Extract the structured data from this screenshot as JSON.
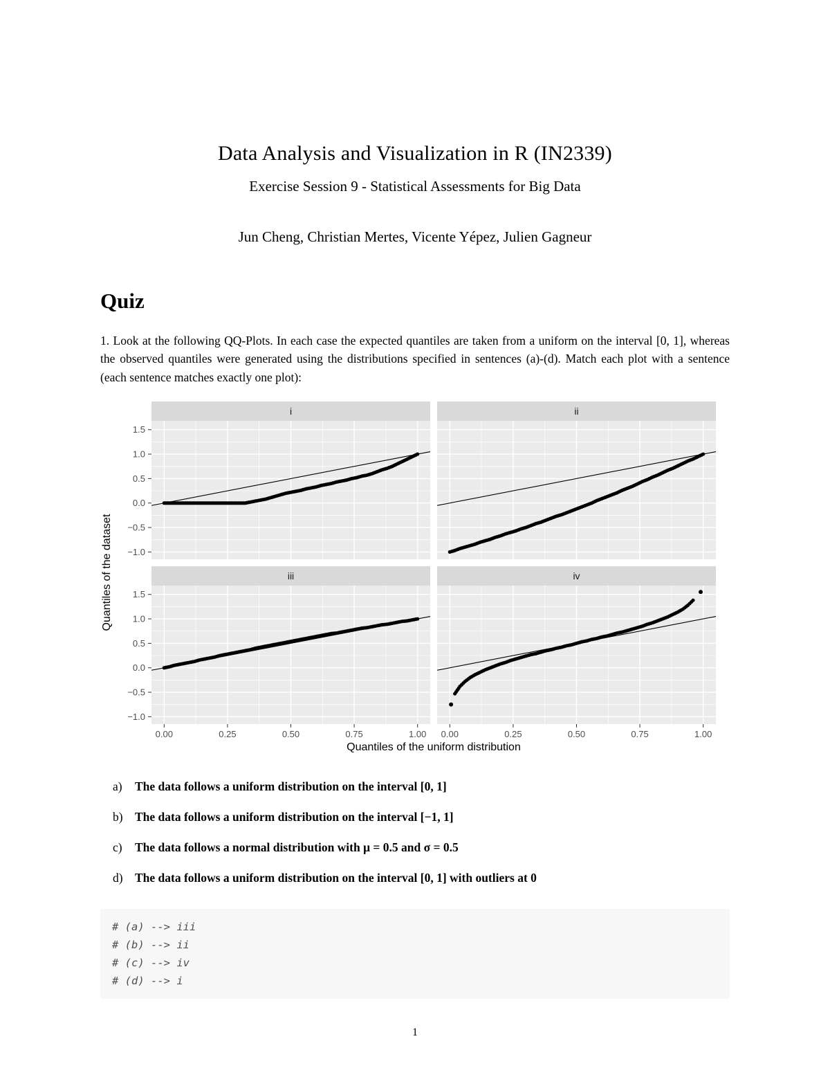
{
  "header": {
    "title": "Data Analysis and Visualization in R (IN2339)",
    "subtitle": "Exercise Session 9 - Statistical Assessments for Big Data",
    "authors": "Jun Cheng, Christian Mertes, Vicente Yépez, Julien Gagneur"
  },
  "quiz": {
    "heading": "Quiz",
    "question": "1.  Look at the following QQ-Plots.  In each case the expected quantiles are taken from a uniform on the interval [0, 1], whereas the observed quantiles were generated using the distributions specified in sentences (a)-(d).  Match each plot with a sentence (each sentence matches exactly one plot):",
    "options": [
      {
        "label": "a)",
        "text": "The data follows a uniform distribution on the interval [0, 1]"
      },
      {
        "label": "b)",
        "text": "The data follows a uniform distribution on the interval [−1, 1]"
      },
      {
        "label": "c)",
        "text": "The data follows a normal distribution with μ = 0.5 and σ = 0.5"
      },
      {
        "label": "d)",
        "text": "The data follows a uniform distribution on the interval [0, 1] with outliers at 0"
      }
    ],
    "answers_code": [
      "# (a) --> iii",
      "# (b) --> ii",
      "# (c) --> iv",
      "# (d) --> i"
    ]
  },
  "footer": {
    "page_number": "1"
  },
  "chart_data": {
    "type": "scatter",
    "title": "",
    "xlabel": "Quantiles of the uniform distribution",
    "ylabel": "Quantiles of the dataset",
    "legend": "none",
    "grid": "on",
    "xlim": [
      -0.05,
      1.05
    ],
    "ylim": [
      -1.15,
      1.68
    ],
    "x_ticks": {
      "values": [
        0,
        0.25,
        0.5,
        0.75,
        1
      ],
      "labels": [
        "0.00",
        "0.25",
        "0.50",
        "0.75",
        "1.00"
      ]
    },
    "y_ticks": {
      "values": [
        -1,
        -0.5,
        0,
        0.5,
        1,
        1.5
      ],
      "labels": [
        "−1.0",
        "−0.5",
        "0.0",
        "0.5",
        "1.0",
        "1.5"
      ]
    },
    "x_minor": [
      0.125,
      0.375,
      0.625,
      0.875
    ],
    "y_minor": [
      -0.75,
      -0.25,
      0.25,
      0.75,
      1.25
    ],
    "abline": {
      "intercept": 0,
      "slope": 1
    },
    "colors": {
      "panel_bg": "#ebebeb",
      "strip_bg": "#d9d9d9",
      "grid": "#ffffff",
      "point": "#000000",
      "tick_text": "#4d4d4d"
    },
    "facets": [
      {
        "label": "i",
        "points": [
          [
            0,
            0
          ],
          [
            0.02,
            0
          ],
          [
            0.04,
            0
          ],
          [
            0.06,
            0
          ],
          [
            0.08,
            0
          ],
          [
            0.1,
            0
          ],
          [
            0.12,
            0
          ],
          [
            0.14,
            0
          ],
          [
            0.16,
            0
          ],
          [
            0.18,
            0
          ],
          [
            0.2,
            0
          ],
          [
            0.22,
            0
          ],
          [
            0.24,
            0
          ],
          [
            0.26,
            0
          ],
          [
            0.28,
            0
          ],
          [
            0.3,
            0
          ],
          [
            0.32,
            0
          ],
          [
            0.34,
            0.02
          ],
          [
            0.36,
            0.04
          ],
          [
            0.38,
            0.06
          ],
          [
            0.4,
            0.08
          ],
          [
            0.42,
            0.11
          ],
          [
            0.44,
            0.14
          ],
          [
            0.46,
            0.17
          ],
          [
            0.48,
            0.2
          ],
          [
            0.5,
            0.22
          ],
          [
            0.52,
            0.24
          ],
          [
            0.54,
            0.26
          ],
          [
            0.56,
            0.29
          ],
          [
            0.58,
            0.31
          ],
          [
            0.6,
            0.33
          ],
          [
            0.62,
            0.36
          ],
          [
            0.64,
            0.38
          ],
          [
            0.66,
            0.4
          ],
          [
            0.68,
            0.43
          ],
          [
            0.7,
            0.45
          ],
          [
            0.72,
            0.47
          ],
          [
            0.74,
            0.5
          ],
          [
            0.76,
            0.52
          ],
          [
            0.78,
            0.55
          ],
          [
            0.8,
            0.57
          ],
          [
            0.82,
            0.6
          ],
          [
            0.84,
            0.64
          ],
          [
            0.86,
            0.68
          ],
          [
            0.88,
            0.71
          ],
          [
            0.9,
            0.75
          ],
          [
            0.92,
            0.8
          ],
          [
            0.94,
            0.85
          ],
          [
            0.96,
            0.9
          ],
          [
            0.98,
            0.95
          ],
          [
            1,
            1
          ]
        ],
        "outliers": []
      },
      {
        "label": "ii",
        "points": [
          [
            0,
            -1
          ],
          [
            0.02,
            -0.97
          ],
          [
            0.04,
            -0.93
          ],
          [
            0.06,
            -0.9
          ],
          [
            0.08,
            -0.87
          ],
          [
            0.1,
            -0.84
          ],
          [
            0.12,
            -0.8
          ],
          [
            0.14,
            -0.77
          ],
          [
            0.16,
            -0.74
          ],
          [
            0.18,
            -0.7
          ],
          [
            0.2,
            -0.67
          ],
          [
            0.22,
            -0.63
          ],
          [
            0.24,
            -0.6
          ],
          [
            0.26,
            -0.57
          ],
          [
            0.28,
            -0.53
          ],
          [
            0.3,
            -0.5
          ],
          [
            0.32,
            -0.46
          ],
          [
            0.34,
            -0.42
          ],
          [
            0.36,
            -0.39
          ],
          [
            0.38,
            -0.35
          ],
          [
            0.4,
            -0.31
          ],
          [
            0.42,
            -0.27
          ],
          [
            0.44,
            -0.24
          ],
          [
            0.46,
            -0.2
          ],
          [
            0.48,
            -0.16
          ],
          [
            0.5,
            -0.12
          ],
          [
            0.52,
            -0.08
          ],
          [
            0.54,
            -0.04
          ],
          [
            0.56,
            0
          ],
          [
            0.58,
            0.05
          ],
          [
            0.6,
            0.09
          ],
          [
            0.62,
            0.13
          ],
          [
            0.64,
            0.17
          ],
          [
            0.66,
            0.21
          ],
          [
            0.68,
            0.26
          ],
          [
            0.7,
            0.3
          ],
          [
            0.72,
            0.34
          ],
          [
            0.74,
            0.39
          ],
          [
            0.76,
            0.44
          ],
          [
            0.78,
            0.48
          ],
          [
            0.8,
            0.53
          ],
          [
            0.82,
            0.57
          ],
          [
            0.84,
            0.62
          ],
          [
            0.86,
            0.67
          ],
          [
            0.88,
            0.71
          ],
          [
            0.9,
            0.76
          ],
          [
            0.92,
            0.81
          ],
          [
            0.94,
            0.86
          ],
          [
            0.96,
            0.9
          ],
          [
            0.98,
            0.95
          ],
          [
            1,
            1
          ]
        ],
        "outliers": []
      },
      {
        "label": "iii",
        "points": [
          [
            0,
            0
          ],
          [
            0.02,
            0.02
          ],
          [
            0.04,
            0.05
          ],
          [
            0.06,
            0.07
          ],
          [
            0.08,
            0.09
          ],
          [
            0.1,
            0.11
          ],
          [
            0.12,
            0.13
          ],
          [
            0.14,
            0.16
          ],
          [
            0.16,
            0.18
          ],
          [
            0.18,
            0.2
          ],
          [
            0.2,
            0.22
          ],
          [
            0.22,
            0.25
          ],
          [
            0.24,
            0.27
          ],
          [
            0.26,
            0.29
          ],
          [
            0.28,
            0.31
          ],
          [
            0.3,
            0.33
          ],
          [
            0.32,
            0.35
          ],
          [
            0.34,
            0.37
          ],
          [
            0.36,
            0.4
          ],
          [
            0.38,
            0.42
          ],
          [
            0.4,
            0.44
          ],
          [
            0.42,
            0.46
          ],
          [
            0.44,
            0.48
          ],
          [
            0.46,
            0.5
          ],
          [
            0.48,
            0.52
          ],
          [
            0.5,
            0.54
          ],
          [
            0.52,
            0.56
          ],
          [
            0.54,
            0.58
          ],
          [
            0.56,
            0.6
          ],
          [
            0.58,
            0.62
          ],
          [
            0.6,
            0.64
          ],
          [
            0.62,
            0.66
          ],
          [
            0.64,
            0.68
          ],
          [
            0.66,
            0.7
          ],
          [
            0.68,
            0.71
          ],
          [
            0.7,
            0.73
          ],
          [
            0.72,
            0.75
          ],
          [
            0.74,
            0.77
          ],
          [
            0.76,
            0.79
          ],
          [
            0.78,
            0.81
          ],
          [
            0.8,
            0.82
          ],
          [
            0.82,
            0.84
          ],
          [
            0.84,
            0.86
          ],
          [
            0.86,
            0.88
          ],
          [
            0.88,
            0.89
          ],
          [
            0.9,
            0.91
          ],
          [
            0.92,
            0.93
          ],
          [
            0.94,
            0.95
          ],
          [
            0.96,
            0.96
          ],
          [
            0.98,
            0.98
          ],
          [
            1,
            1
          ]
        ],
        "outliers": []
      },
      {
        "label": "iv",
        "points": [
          [
            0.02,
            -0.53
          ],
          [
            0.04,
            -0.38
          ],
          [
            0.06,
            -0.28
          ],
          [
            0.08,
            -0.2
          ],
          [
            0.1,
            -0.14
          ],
          [
            0.12,
            -0.09
          ],
          [
            0.14,
            -0.04
          ],
          [
            0.16,
            0
          ],
          [
            0.18,
            0.04
          ],
          [
            0.2,
            0.08
          ],
          [
            0.22,
            0.11
          ],
          [
            0.24,
            0.15
          ],
          [
            0.26,
            0.18
          ],
          [
            0.28,
            0.21
          ],
          [
            0.3,
            0.24
          ],
          [
            0.32,
            0.27
          ],
          [
            0.34,
            0.29
          ],
          [
            0.36,
            0.32
          ],
          [
            0.38,
            0.35
          ],
          [
            0.4,
            0.37
          ],
          [
            0.42,
            0.4
          ],
          [
            0.44,
            0.42
          ],
          [
            0.46,
            0.45
          ],
          [
            0.48,
            0.47
          ],
          [
            0.5,
            0.5
          ],
          [
            0.52,
            0.53
          ],
          [
            0.54,
            0.55
          ],
          [
            0.56,
            0.58
          ],
          [
            0.58,
            0.6
          ],
          [
            0.6,
            0.63
          ],
          [
            0.62,
            0.65
          ],
          [
            0.64,
            0.68
          ],
          [
            0.66,
            0.71
          ],
          [
            0.68,
            0.73
          ],
          [
            0.7,
            0.76
          ],
          [
            0.72,
            0.79
          ],
          [
            0.74,
            0.82
          ],
          [
            0.76,
            0.85
          ],
          [
            0.78,
            0.89
          ],
          [
            0.8,
            0.92
          ],
          [
            0.82,
            0.96
          ],
          [
            0.84,
            1
          ],
          [
            0.86,
            1.04
          ],
          [
            0.88,
            1.09
          ],
          [
            0.9,
            1.14
          ],
          [
            0.92,
            1.2
          ],
          [
            0.94,
            1.28
          ],
          [
            0.96,
            1.38
          ]
        ],
        "outliers": [
          [
            0.005,
            -0.75
          ],
          [
            0.99,
            1.55
          ]
        ]
      }
    ]
  }
}
